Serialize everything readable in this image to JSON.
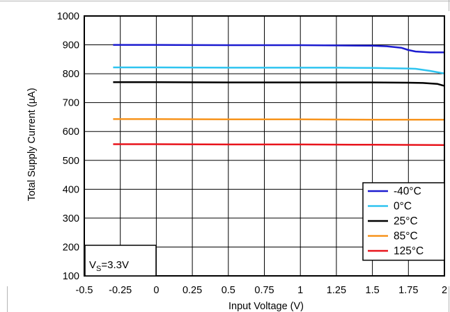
{
  "chart_data": {
    "type": "line",
    "xlabel": "Input Voltage (V)",
    "ylabel": "Total Supply Current (µA)",
    "xlim": [
      -0.5,
      2
    ],
    "ylim": [
      100,
      1000
    ],
    "x_ticks": [
      "-0.5",
      "-0.25",
      "0",
      "0.25",
      "0.5",
      "0.75",
      "1",
      "1.25",
      "1.5",
      "1.75",
      "2"
    ],
    "y_ticks": [
      "100",
      "200",
      "300",
      "400",
      "500",
      "600",
      "700",
      "800",
      "900",
      "1000"
    ],
    "grid": true,
    "legend_position": "bottom-right",
    "annotation": {
      "prefix": "V",
      "sub": "S",
      "suffix": "=3.3V"
    },
    "series": [
      {
        "name": "-40°C",
        "color": "#1c1cd0",
        "x": [
          -0.3,
          0,
          0.5,
          1,
          1.25,
          1.5,
          1.6,
          1.7,
          1.75,
          1.8,
          1.9,
          2
        ],
        "y": [
          900,
          900,
          899,
          899,
          898,
          897,
          895,
          890,
          882,
          877,
          874,
          874
        ]
      },
      {
        "name": "0°C",
        "color": "#2ec4f0",
        "x": [
          -0.3,
          0,
          0.5,
          1,
          1.25,
          1.5,
          1.75,
          1.8,
          1.9,
          2
        ],
        "y": [
          822,
          822,
          821,
          821,
          821,
          820,
          818,
          817,
          810,
          801
        ]
      },
      {
        "name": "25°C",
        "color": "#000000",
        "x": [
          -0.3,
          0,
          0.5,
          1,
          1.5,
          1.75,
          1.85,
          1.95,
          2
        ],
        "y": [
          771,
          771,
          770,
          770,
          770,
          769,
          768,
          765,
          758
        ]
      },
      {
        "name": "85°C",
        "color": "#f7941d",
        "x": [
          -0.3,
          0,
          0.5,
          1,
          1.5,
          2
        ],
        "y": [
          643,
          643,
          642,
          642,
          641,
          641
        ]
      },
      {
        "name": "125°C",
        "color": "#e8141c",
        "x": [
          -0.3,
          0,
          0.5,
          1,
          1.5,
          2
        ],
        "y": [
          556,
          556,
          555,
          555,
          554,
          553
        ]
      }
    ]
  }
}
